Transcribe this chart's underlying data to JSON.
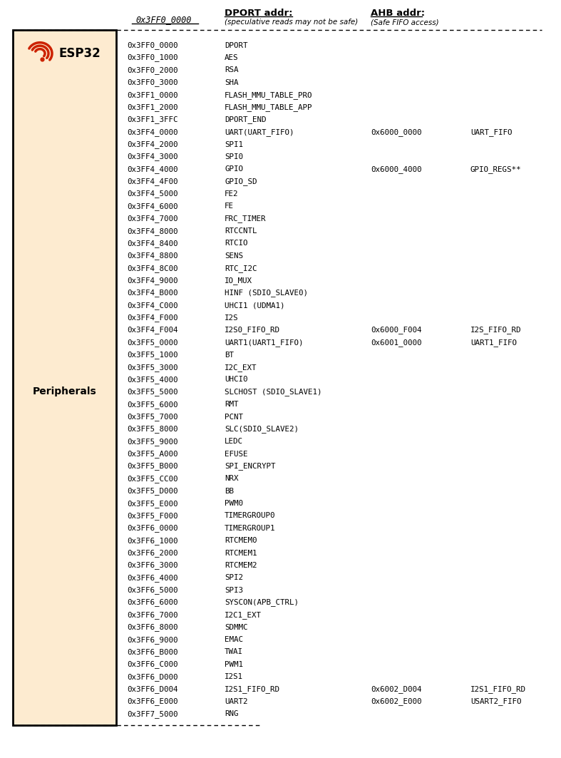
{
  "title_addr": "0x3FF0_0000",
  "col_headers": [
    "DPORT addr:",
    "AHB addr:"
  ],
  "col_subheaders": [
    "(speculative reads may not be safe)",
    "(Safe FIFO access)"
  ],
  "rows": [
    [
      "0x3FF0_0000",
      "DPORT",
      "",
      ""
    ],
    [
      "0x3FF0_1000",
      "AES",
      "",
      ""
    ],
    [
      "0x3FF0_2000",
      "RSA",
      "",
      ""
    ],
    [
      "0x3FF0_3000",
      "SHA",
      "",
      ""
    ],
    [
      "0x3FF1_0000",
      "FLASH_MMU_TABLE_PRO",
      "",
      ""
    ],
    [
      "0x3FF1_2000",
      "FLASH_MMU_TABLE_APP",
      "",
      ""
    ],
    [
      "0x3FF1_3FFC",
      "DPORT_END",
      "",
      ""
    ],
    [
      "0x3FF4_0000",
      "UART(UART_FIFO)",
      "0x6000_0000",
      "UART_FIFO"
    ],
    [
      "0x3FF4_2000",
      "SPI1",
      "",
      ""
    ],
    [
      "0x3FF4_3000",
      "SPI0",
      "",
      ""
    ],
    [
      "0x3FF4_4000",
      "GPIO",
      "0x6000_4000",
      "GPIO_REGS**"
    ],
    [
      "0x3FF4_4F00",
      "GPIO_SD",
      "",
      ""
    ],
    [
      "0x3FF4_5000",
      "FE2",
      "",
      ""
    ],
    [
      "0x3FF4_6000",
      "FE",
      "",
      ""
    ],
    [
      "0x3FF4_7000",
      "FRC_TIMER",
      "",
      ""
    ],
    [
      "0x3FF4_8000",
      "RTCCNTL",
      "",
      ""
    ],
    [
      "0x3FF4_8400",
      "RTCIO",
      "",
      ""
    ],
    [
      "0x3FF4_8800",
      "SENS",
      "",
      ""
    ],
    [
      "0x3FF4_8C00",
      "RTC_I2C",
      "",
      ""
    ],
    [
      "0x3FF4_9000",
      "IO_MUX",
      "",
      ""
    ],
    [
      "0x3FF4_B000",
      "HINF (SDIO_SLAVE0)",
      "",
      ""
    ],
    [
      "0x3FF4_C000",
      "UHCI1 (UDMA1)",
      "",
      ""
    ],
    [
      "0x3FF4_F000",
      "I2S",
      "",
      ""
    ],
    [
      "0x3FF4_F004",
      "I2S0_FIFO_RD",
      "0x6000_F004",
      "I2S_FIFO_RD"
    ],
    [
      "0x3FF5_0000",
      "UART1(UART1_FIFO)",
      "0x6001_0000",
      "UART1_FIFO"
    ],
    [
      "0x3FF5_1000",
      "BT",
      "",
      ""
    ],
    [
      "0x3FF5_3000",
      "I2C_EXT",
      "",
      ""
    ],
    [
      "0x3FF5_4000",
      "UHCI0",
      "",
      ""
    ],
    [
      "0x3FF5_5000",
      "SLCHOST (SDIO_SLAVE1)",
      "",
      ""
    ],
    [
      "0x3FF5_6000",
      "RMT",
      "",
      ""
    ],
    [
      "0x3FF5_7000",
      "PCNT",
      "",
      ""
    ],
    [
      "0x3FF5_8000",
      "SLC(SDIO_SLAVE2)",
      "",
      ""
    ],
    [
      "0x3FF5_9000",
      "LEDC",
      "",
      ""
    ],
    [
      "0x3FF5_A000",
      "EFUSE",
      "",
      ""
    ],
    [
      "0x3FF5_B000",
      "SPI_ENCRYPT",
      "",
      ""
    ],
    [
      "0x3FF5_CC00",
      "NRX",
      "",
      ""
    ],
    [
      "0x3FF5_D000",
      "BB",
      "",
      ""
    ],
    [
      "0x3FF5_E000",
      "PWM0",
      "",
      ""
    ],
    [
      "0x3FF5_F000",
      "TIMERGROUP0",
      "",
      ""
    ],
    [
      "0x3FF6_0000",
      "TIMERGROUP1",
      "",
      ""
    ],
    [
      "0x3FF6_1000",
      "RTCMEM0",
      "",
      ""
    ],
    [
      "0x3FF6_2000",
      "RTCMEM1",
      "",
      ""
    ],
    [
      "0x3FF6_3000",
      "RTCMEM2",
      "",
      ""
    ],
    [
      "0x3FF6_4000",
      "SPI2",
      "",
      ""
    ],
    [
      "0x3FF6_5000",
      "SPI3",
      "",
      ""
    ],
    [
      "0x3FF6_6000",
      "SYSCON(APB_CTRL)",
      "",
      ""
    ],
    [
      "0x3FF6_7000",
      "I2C1_EXT",
      "",
      ""
    ],
    [
      "0x3FF6_8000",
      "SDMMC",
      "",
      ""
    ],
    [
      "0x3FF6_9000",
      "EMAC",
      "",
      ""
    ],
    [
      "0x3FF6_B000",
      "TWAI",
      "",
      ""
    ],
    [
      "0x3FF6_C000",
      "PWM1",
      "",
      ""
    ],
    [
      "0x3FF6_D000",
      "I2S1",
      "",
      ""
    ],
    [
      "0x3FF6_D004",
      "I2S1_FIFO_RD",
      "0x6002_D004",
      "I2S1_FIFO_RD"
    ],
    [
      "0x3FF6_E000",
      "UART2",
      "0x6002_E000",
      "USART2_FIFO"
    ],
    [
      "0x3FF7_5000",
      "RNG",
      "",
      ""
    ]
  ],
  "box_bg": "#FDEBD0",
  "box_border": "#000000",
  "esp32_label": "ESP32",
  "peripherals_label": "Peripherals",
  "text_color": "#000000",
  "mono_font": "monospace",
  "sans_font": "sans-serif",
  "fig_bg": "#ffffff",
  "fig_w": 7.87,
  "fig_h": 10.63,
  "dpi": 100
}
